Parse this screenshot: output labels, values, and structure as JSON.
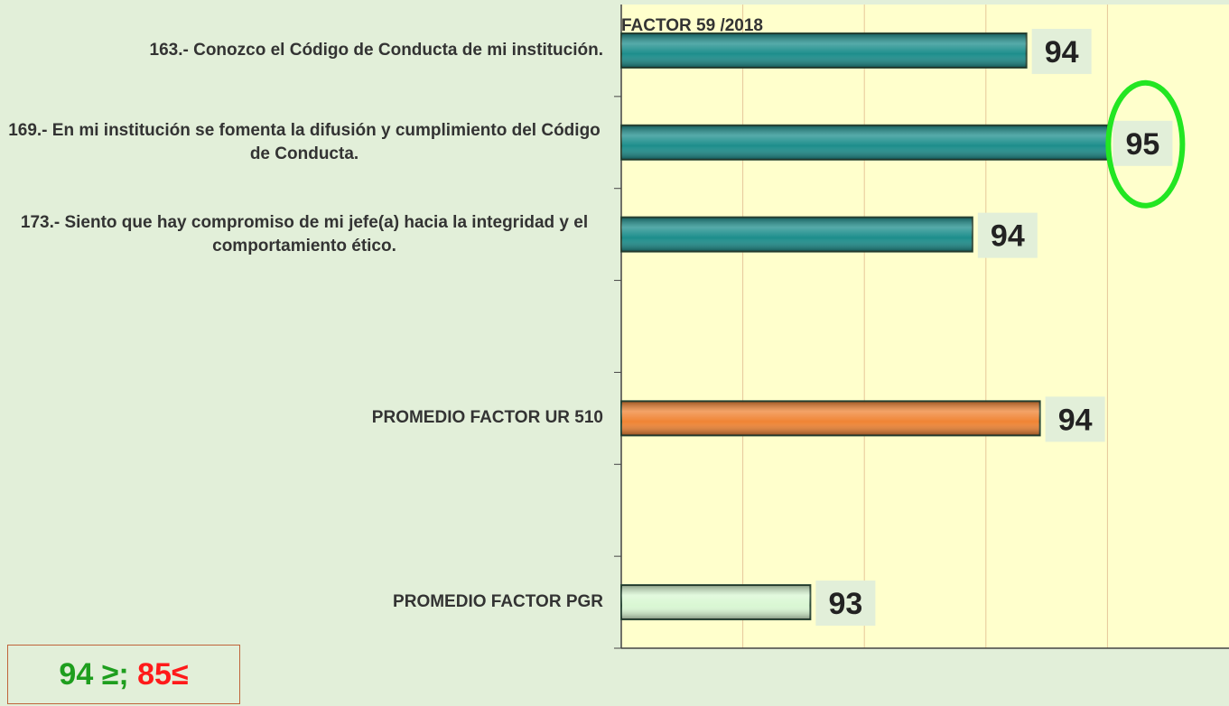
{
  "chart_data": {
    "type": "hbar",
    "title": "FACTOR 59 /2018",
    "categories": [
      "163.- Conozco el Código de Conducta de mi institución.",
      "169.- En mi institución se fomenta la difusión y cumplimiento del Código de Conducta.",
      "173.- Siento que hay compromiso de mi jefe(a) hacia la integridad y el comportamiento ético.",
      null,
      "PROMEDIO FACTOR UR 510",
      null,
      "PROMEDIO FACTOR PGR"
    ],
    "values": [
      94.2,
      94.8,
      93.8,
      null,
      94.3,
      null,
      92.6
    ],
    "value_labels": [
      "94",
      "95",
      "94",
      null,
      "94",
      null,
      "93"
    ],
    "colors": [
      "#1d8e8c",
      "#1d8e8c",
      "#1d8e8c",
      null,
      "#f08434",
      null,
      "#d9f7d3"
    ],
    "xlim": [
      91.2,
      95.7
    ],
    "xticks": [
      92.1,
      93.0,
      93.9,
      94.8
    ],
    "grid": true,
    "legend_note": {
      "high": "94 ≥;",
      "low": "85≤"
    }
  }
}
